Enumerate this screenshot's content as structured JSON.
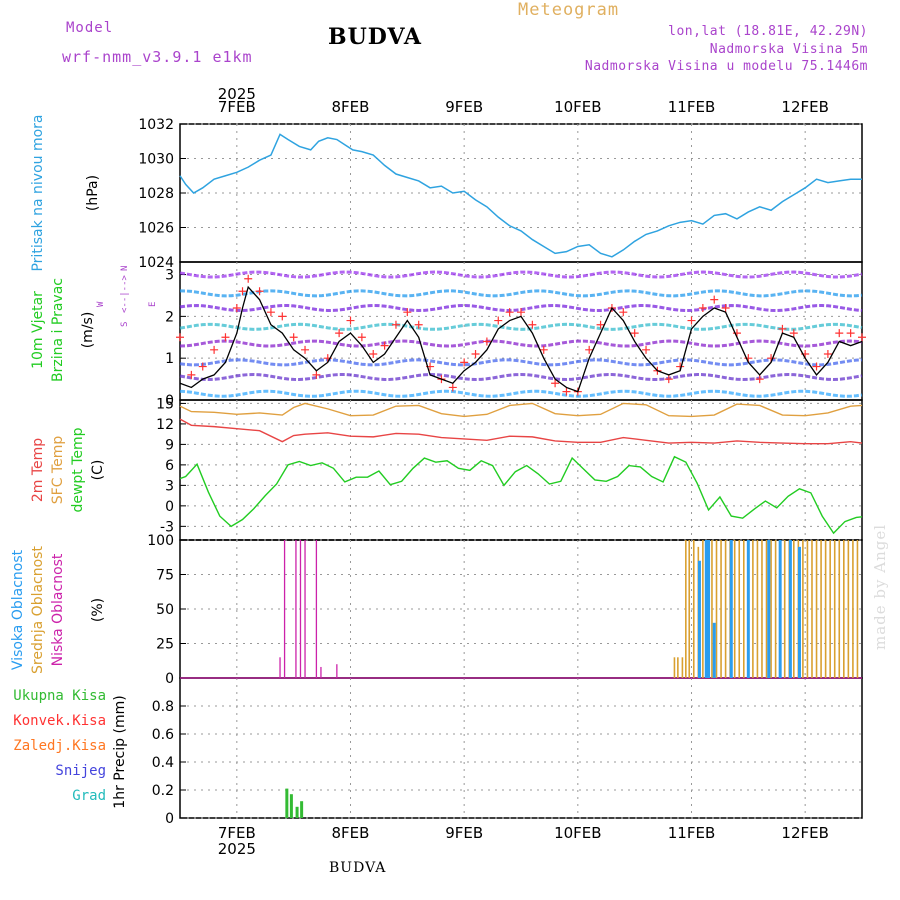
{
  "header": {
    "title": "Meteogram",
    "station": "BUDVA",
    "model_label": "Model",
    "model_name": "wrf-nmm_v3.9.1 e1km",
    "lonlat": "lon,lat (18.81E, 42.29N)",
    "elevation": "Nadmorska Visina 5m",
    "model_elevation": "Nadmorska Visina u modelu 75.1446m",
    "footer_station": "BUDVA",
    "watermark": "made by Angel"
  },
  "colors": {
    "pressure": "#2fa3e0",
    "wind_speed": "#000000",
    "gust": "#ff3333",
    "temp_2m": "#e84545",
    "temp_sfc": "#e0a040",
    "dewpoint": "#22cc22",
    "cloud_high": "#2a9df0",
    "cloud_mid": "#d9a030",
    "cloud_low": "#cc22aa",
    "precip_total": "#33bb33",
    "precip_conv": "#ff3333",
    "precip_frozen": "#ff7722",
    "snow": "#4444dd",
    "graupel": "#22bbbb",
    "title_meteogram": "#e0b060",
    "model_purple": "#aa44cc",
    "station_black": "#000000"
  },
  "time_axis": {
    "year": "2025",
    "days": [
      "7FEB",
      "8FEB",
      "9FEB",
      "10FEB",
      "11FEB",
      "12FEB"
    ]
  },
  "chart_data": [
    {
      "type": "line",
      "panel": "pressure",
      "ylabel": [
        "Pritisak na nivou mora",
        "(hPa)"
      ],
      "unit": "hPa",
      "ylim": [
        1024,
        1032
      ],
      "yticks": [
        "1024",
        "1026",
        "1028",
        "1030",
        "1032"
      ],
      "x_range_days": [
        6.5,
        12.5
      ],
      "grid": true,
      "series": [
        {
          "x": [
            6.5,
            6.55,
            6.62,
            6.7,
            6.8,
            6.9,
            7.0,
            7.1,
            7.2,
            7.3,
            7.38,
            7.45,
            7.55,
            7.65,
            7.72,
            7.8,
            7.88,
            7.95,
            8.02,
            8.1,
            8.2,
            8.3,
            8.4,
            8.5,
            8.6,
            8.7,
            8.8,
            8.9,
            9.0,
            9.1,
            9.2,
            9.3,
            9.4,
            9.5,
            9.6,
            9.7,
            9.8,
            9.9,
            10.0,
            10.1,
            10.2,
            10.3,
            10.4,
            10.5,
            10.6,
            10.7,
            10.8,
            10.9,
            11.0,
            11.1,
            11.2,
            11.3,
            11.4,
            11.5,
            11.6,
            11.7,
            11.8,
            11.9,
            12.0,
            12.1,
            12.2,
            12.3,
            12.4,
            12.5
          ],
          "values": [
            1029.0,
            1028.5,
            1028.0,
            1028.3,
            1028.8,
            1029.0,
            1029.2,
            1029.5,
            1029.9,
            1030.2,
            1031.4,
            1031.1,
            1030.7,
            1030.5,
            1031.0,
            1031.2,
            1031.1,
            1030.8,
            1030.5,
            1030.4,
            1030.2,
            1029.6,
            1029.1,
            1028.9,
            1028.7,
            1028.3,
            1028.4,
            1028.0,
            1028.1,
            1027.6,
            1027.2,
            1026.6,
            1026.1,
            1025.8,
            1025.3,
            1024.9,
            1024.5,
            1024.6,
            1024.9,
            1025.0,
            1024.5,
            1024.3,
            1024.7,
            1025.2,
            1025.6,
            1025.8,
            1026.1,
            1026.3,
            1026.4,
            1026.2,
            1026.7,
            1026.8,
            1026.5,
            1026.9,
            1027.2,
            1027.0,
            1027.5,
            1027.9,
            1028.3,
            1028.8,
            1028.6,
            1028.7,
            1028.8,
            1028.8
          ]
        }
      ]
    },
    {
      "type": "line",
      "panel": "wind",
      "ylabel": [
        "10m Vjetar",
        "Brzina i Pravac",
        "(m/s)"
      ],
      "compass": {
        "north": "N",
        "south": "S",
        "west": "W",
        "east": "E"
      },
      "unit": "m/s",
      "ylim": [
        0,
        3.3
      ],
      "yticks": [
        "0",
        "1",
        "2",
        "3"
      ],
      "grid": true,
      "series": [
        {
          "name": "wind speed",
          "x": [
            6.5,
            6.6,
            6.7,
            6.8,
            6.9,
            7.0,
            7.05,
            7.1,
            7.2,
            7.3,
            7.4,
            7.5,
            7.6,
            7.7,
            7.8,
            7.9,
            8.0,
            8.1,
            8.2,
            8.3,
            8.4,
            8.5,
            8.6,
            8.7,
            8.8,
            8.9,
            9.0,
            9.1,
            9.2,
            9.3,
            9.4,
            9.5,
            9.6,
            9.7,
            9.8,
            9.9,
            10.0,
            10.1,
            10.2,
            10.3,
            10.4,
            10.5,
            10.6,
            10.7,
            10.8,
            10.9,
            11.0,
            11.1,
            11.2,
            11.3,
            11.4,
            11.5,
            11.6,
            11.7,
            11.8,
            11.9,
            12.0,
            12.1,
            12.2,
            12.3,
            12.4,
            12.5
          ],
          "values": [
            0.4,
            0.3,
            0.5,
            0.6,
            0.9,
            1.6,
            2.2,
            2.7,
            2.4,
            1.8,
            1.6,
            1.2,
            1.0,
            0.7,
            0.9,
            1.4,
            1.6,
            1.3,
            0.9,
            1.1,
            1.5,
            1.9,
            1.5,
            0.6,
            0.5,
            0.4,
            0.7,
            0.9,
            1.2,
            1.7,
            1.9,
            2.0,
            1.6,
            1.0,
            0.5,
            0.3,
            0.2,
            1.0,
            1.6,
            2.2,
            1.9,
            1.4,
            1.0,
            0.7,
            0.6,
            0.7,
            1.7,
            2.0,
            2.2,
            2.1,
            1.5,
            0.9,
            0.6,
            0.9,
            1.6,
            1.5,
            1.0,
            0.6,
            0.9,
            1.4,
            1.3,
            1.4
          ]
        },
        {
          "name": "gust",
          "x": [
            6.5,
            6.6,
            6.7,
            6.8,
            6.9,
            7.0,
            7.05,
            7.1,
            7.2,
            7.3,
            7.4,
            7.5,
            7.6,
            7.7,
            7.8,
            7.9,
            8.0,
            8.1,
            8.2,
            8.3,
            8.4,
            8.5,
            8.6,
            8.7,
            8.8,
            8.9,
            9.0,
            9.1,
            9.2,
            9.3,
            9.4,
            9.5,
            9.6,
            9.7,
            9.8,
            9.9,
            10.0,
            10.1,
            10.2,
            10.3,
            10.4,
            10.5,
            10.6,
            10.7,
            10.8,
            10.9,
            11.0,
            11.1,
            11.2,
            11.3,
            11.4,
            11.5,
            11.6,
            11.7,
            11.8,
            11.9,
            12.0,
            12.1,
            12.2,
            12.3,
            12.4,
            12.5
          ],
          "values": [
            1.5,
            0.6,
            0.8,
            1.2,
            1.5,
            2.2,
            2.6,
            2.9,
            2.6,
            2.1,
            2.0,
            1.5,
            1.2,
            0.6,
            1.0,
            1.6,
            1.9,
            1.5,
            1.1,
            1.3,
            1.8,
            2.1,
            1.8,
            0.8,
            0.5,
            0.3,
            0.9,
            1.1,
            1.4,
            1.9,
            2.1,
            2.1,
            1.8,
            1.2,
            0.4,
            0.2,
            0.2,
            1.2,
            1.8,
            2.2,
            2.1,
            1.6,
            1.2,
            0.7,
            0.5,
            0.8,
            1.9,
            2.2,
            2.4,
            2.2,
            1.6,
            1.0,
            0.5,
            1.0,
            1.7,
            1.6,
            1.1,
            0.8,
            1.1,
            1.6,
            1.6,
            1.5
          ]
        }
      ]
    },
    {
      "type": "line",
      "panel": "temperature",
      "ylabel": [
        "2m Temp",
        "SFC Temp",
        "dewpt Temp",
        "(C)"
      ],
      "unit": "C",
      "ylim": [
        -5,
        15.5
      ],
      "yticks": [
        "-3",
        "0",
        "3",
        "6",
        "9",
        "12",
        "15"
      ],
      "grid": true,
      "series": [
        {
          "name": "SFC Temp",
          "x": [
            6.5,
            6.6,
            6.8,
            7.0,
            7.2,
            7.4,
            7.5,
            7.6,
            7.8,
            8.0,
            8.2,
            8.4,
            8.6,
            8.8,
            9.0,
            9.2,
            9.4,
            9.6,
            9.8,
            10.0,
            10.2,
            10.4,
            10.6,
            10.8,
            11.0,
            11.2,
            11.4,
            11.6,
            11.8,
            12.0,
            12.2,
            12.4,
            12.5
          ],
          "values": [
            14.6,
            13.8,
            13.7,
            13.4,
            13.6,
            13.3,
            14.4,
            15.0,
            14.2,
            13.2,
            13.3,
            14.6,
            14.7,
            13.5,
            13.1,
            13.4,
            14.7,
            15.0,
            13.5,
            13.2,
            13.4,
            15.0,
            14.8,
            13.2,
            13.1,
            13.3,
            14.9,
            14.7,
            13.3,
            13.2,
            13.6,
            14.6,
            14.7
          ]
        },
        {
          "name": "2m Temp",
          "x": [
            6.5,
            6.6,
            6.8,
            7.0,
            7.2,
            7.4,
            7.5,
            7.6,
            7.8,
            8.0,
            8.2,
            8.4,
            8.6,
            8.8,
            9.0,
            9.2,
            9.4,
            9.6,
            9.8,
            10.0,
            10.2,
            10.4,
            10.6,
            10.8,
            11.0,
            11.2,
            11.4,
            11.6,
            11.8,
            12.0,
            12.2,
            12.4,
            12.5
          ],
          "values": [
            12.7,
            11.8,
            11.6,
            11.3,
            11.0,
            9.4,
            10.3,
            10.5,
            10.7,
            10.2,
            10.1,
            10.6,
            10.5,
            10.0,
            9.8,
            9.6,
            10.2,
            10.1,
            9.5,
            9.3,
            9.3,
            10.0,
            9.6,
            9.2,
            9.3,
            9.2,
            9.5,
            9.3,
            9.2,
            9.1,
            9.1,
            9.4,
            9.2
          ]
        },
        {
          "name": "dewpt Temp",
          "x": [
            6.5,
            6.55,
            6.65,
            6.75,
            6.85,
            6.95,
            7.05,
            7.15,
            7.25,
            7.35,
            7.45,
            7.55,
            7.65,
            7.75,
            7.85,
            7.95,
            8.05,
            8.15,
            8.25,
            8.35,
            8.45,
            8.55,
            8.65,
            8.75,
            8.85,
            8.95,
            9.05,
            9.15,
            9.25,
            9.35,
            9.45,
            9.55,
            9.65,
            9.75,
            9.85,
            9.95,
            10.05,
            10.15,
            10.25,
            10.35,
            10.45,
            10.55,
            10.65,
            10.75,
            10.85,
            10.95,
            11.05,
            11.15,
            11.25,
            11.35,
            11.45,
            11.55,
            11.65,
            11.75,
            11.85,
            11.95,
            12.05,
            12.15,
            12.25,
            12.35,
            12.45,
            12.5
          ],
          "values": [
            4.0,
            4.3,
            6.1,
            2.0,
            -1.5,
            -3.0,
            -2.0,
            -0.4,
            1.5,
            3.2,
            6.0,
            6.5,
            5.9,
            6.3,
            5.5,
            3.5,
            4.2,
            4.2,
            5.1,
            3.1,
            3.6,
            5.5,
            7.0,
            6.4,
            6.6,
            5.5,
            5.2,
            6.6,
            5.9,
            3.0,
            5.0,
            5.9,
            4.7,
            3.2,
            3.6,
            7.0,
            5.4,
            3.8,
            3.6,
            4.3,
            5.9,
            5.7,
            4.3,
            3.5,
            7.2,
            6.4,
            3.3,
            -0.6,
            1.3,
            -1.5,
            -1.8,
            -0.5,
            0.7,
            -0.3,
            1.4,
            2.5,
            1.9,
            -1.5,
            -4.0,
            -2.3,
            -1.7,
            -1.6
          ]
        }
      ]
    },
    {
      "type": "bar",
      "panel": "clouds",
      "ylabel": [
        "Visoka Oblacnost",
        "Srednja Oblacnost",
        "Niska Oblacnost",
        "(%)"
      ],
      "unit": "%",
      "ylim": [
        0,
        100
      ],
      "yticks": [
        "0",
        "25",
        "50",
        "75",
        "100"
      ],
      "grid": true,
      "series": [
        {
          "name": "Niska Oblacnost",
          "x": [
            7.38,
            7.42,
            7.52,
            7.56,
            7.6,
            7.7,
            7.74,
            7.88
          ],
          "values": [
            15,
            100,
            100,
            100,
            100,
            100,
            8,
            10
          ]
        },
        {
          "name": "Srednja Oblacnost",
          "x": [
            10.85,
            10.88,
            10.92,
            10.95,
            10.98,
            11.02,
            11.06,
            11.1,
            11.14,
            11.18,
            11.22,
            11.26,
            11.3,
            11.34,
            11.38,
            11.42,
            11.46,
            11.5,
            11.54,
            11.58,
            11.62,
            11.66,
            11.7,
            11.74,
            11.78,
            11.82,
            11.86,
            11.9,
            11.94,
            11.98,
            12.02,
            12.06,
            12.1,
            12.14,
            12.18,
            12.22,
            12.26,
            12.3,
            12.34,
            12.38,
            12.42,
            12.46
          ],
          "values": [
            15,
            15,
            15,
            100,
            100,
            100,
            95,
            100,
            100,
            100,
            100,
            100,
            100,
            100,
            100,
            100,
            100,
            100,
            100,
            100,
            100,
            100,
            100,
            100,
            100,
            100,
            100,
            100,
            100,
            100,
            100,
            100,
            100,
            100,
            100,
            100,
            100,
            100,
            100,
            100,
            100,
            100
          ]
        },
        {
          "name": "Visoka Oblacnost",
          "x": [
            11.07,
            11.13,
            11.15,
            11.2,
            11.35,
            11.5,
            11.68,
            11.78,
            11.87,
            11.95
          ],
          "values": [
            85,
            100,
            100,
            40,
            100,
            100,
            100,
            100,
            100,
            95
          ]
        }
      ]
    },
    {
      "type": "bar",
      "panel": "precipitation",
      "ylabel": [
        "1hr Precip (mm)"
      ],
      "legend": [
        "Ukupna Kisa",
        "Konvek.Kisa",
        "Zaledj.Kisa",
        "Snijeg",
        "Grad"
      ],
      "unit": "mm",
      "ylim": [
        0,
        1.0
      ],
      "yticks": [
        "0",
        "0.2",
        "0.4",
        "0.6",
        "0.8"
      ],
      "grid": true,
      "series": [
        {
          "name": "Ukupna Kisa",
          "x": [
            7.44,
            7.48,
            7.53,
            7.57
          ],
          "values": [
            0.21,
            0.17,
            0.08,
            0.12
          ]
        }
      ]
    }
  ]
}
